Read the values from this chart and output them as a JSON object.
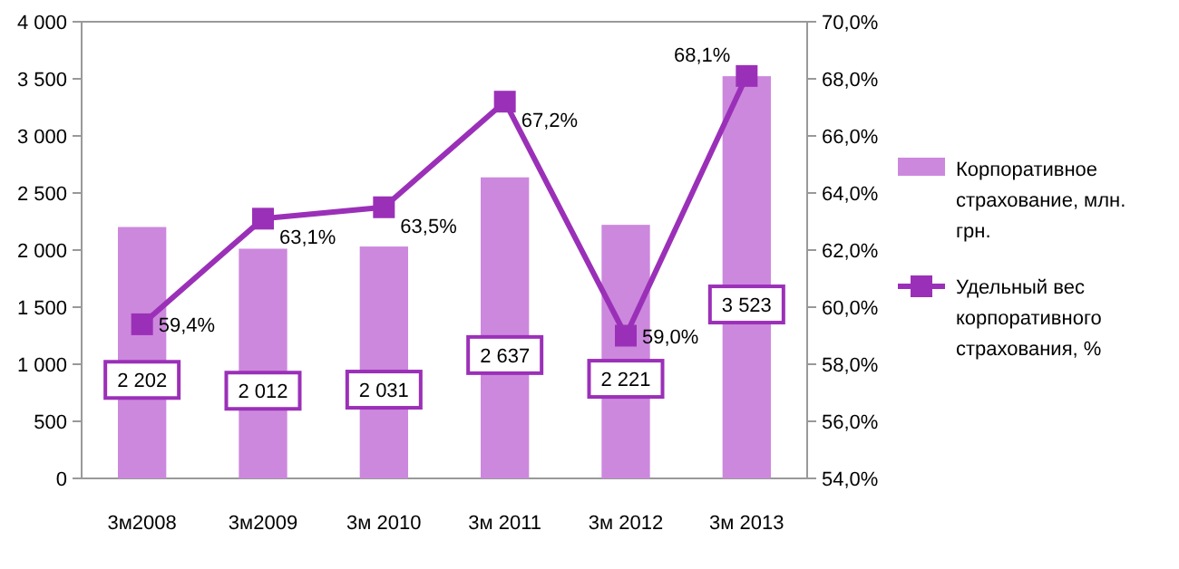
{
  "chart_data": {
    "type": "bar",
    "categories": [
      "3м2008",
      "3м2009",
      "3м 2010",
      "3м 2011",
      "3м 2012",
      "3м 2013"
    ],
    "series": [
      {
        "name": "Корпоративное страхование, млн. грн.",
        "color": "#cc88dd",
        "values": [
          2202,
          2012,
          2031,
          2637,
          2221,
          3523
        ],
        "value_labels": [
          "2 202",
          "2 012",
          "2 031",
          "2 637",
          "2 221",
          "3 523"
        ]
      },
      {
        "name": "Удельный вес корпоративного страхования, %",
        "type": "line",
        "axis": "y2",
        "color": "#9b30b8",
        "marker": "square",
        "values": [
          59.4,
          63.1,
          63.5,
          67.2,
          59.0,
          68.1
        ],
        "value_labels": [
          "59,4%",
          "63,1%",
          "63,5%",
          "67,2%",
          "59,0%",
          "68,1%"
        ]
      }
    ],
    "ylim": [
      0,
      4000
    ],
    "yticks": [
      {
        "value": 0,
        "label": "0"
      },
      {
        "value": 500,
        "label": "500"
      },
      {
        "value": 1000,
        "label": "1 000"
      },
      {
        "value": 1500,
        "label": "1 500"
      },
      {
        "value": 2000,
        "label": "2 000"
      },
      {
        "value": 2500,
        "label": "2 500"
      },
      {
        "value": 3000,
        "label": "3 000"
      },
      {
        "value": 3500,
        "label": "3 500"
      },
      {
        "value": 4000,
        "label": "4 000"
      }
    ],
    "y2lim": [
      54,
      70
    ],
    "y2ticks": [
      {
        "value": 54,
        "label": "54,0%"
      },
      {
        "value": 56,
        "label": "56,0%"
      },
      {
        "value": 58,
        "label": "58,0%"
      },
      {
        "value": 60,
        "label": "60,0%"
      },
      {
        "value": 62,
        "label": "62,0%"
      },
      {
        "value": 64,
        "label": "64,0%"
      },
      {
        "value": 66,
        "label": "66,0%"
      },
      {
        "value": 68,
        "label": "68,0%"
      },
      {
        "value": 70,
        "label": "70,0%"
      }
    ],
    "legend": "right",
    "grid": false
  }
}
